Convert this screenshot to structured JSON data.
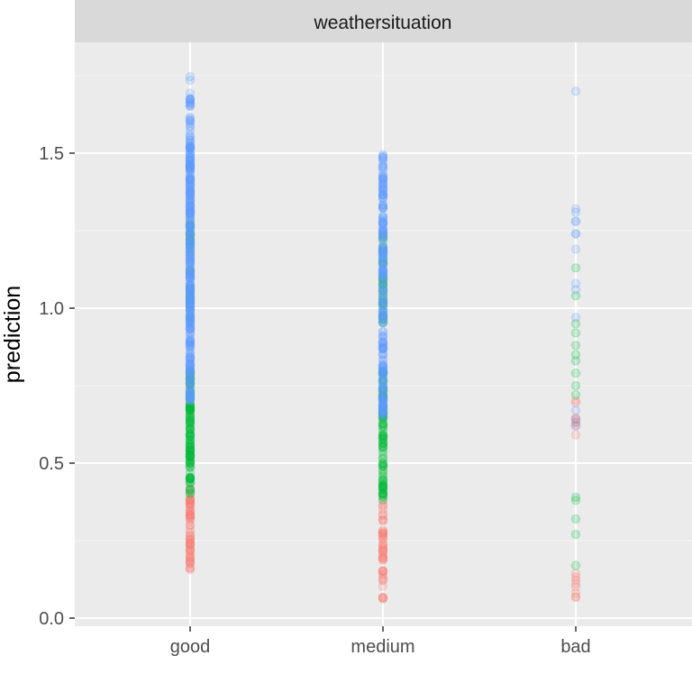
{
  "colors": {
    "panel_bg": "#EBEBEB",
    "strip_bg": "#D9D9D9",
    "grid_major": "#FFFFFF",
    "grid_minor": "#F5F5F5",
    "tick_mark": "#333333",
    "red_group": "#F8766D",
    "green_group": "#00BA38",
    "blue_group": "#619CFF"
  },
  "chart_data": {
    "type": "scatter",
    "strip_label": "weathersituation",
    "title": "",
    "xlabel": "",
    "ylabel": "prediction",
    "categories": [
      "good",
      "medium",
      "bad"
    ],
    "ylim": [
      -0.02,
      1.8
    ],
    "y_ticks": [
      0.0,
      0.5,
      1.0,
      1.5
    ],
    "y_tick_labels": [
      "0.0",
      "0.5",
      "1.0",
      "1.5"
    ],
    "grid": true,
    "point_alpha": 0.2,
    "series": [
      {
        "color": "#F8766D",
        "points": [
          {
            "x": "good",
            "range": [
              0.13,
              0.42
            ],
            "n": 55
          },
          {
            "x": "medium",
            "range": [
              0.06,
              0.38
            ],
            "n": 45
          },
          {
            "x": "bad",
            "range": [
              0.06,
              0.15
            ],
            "n": 8
          },
          {
            "x": "bad",
            "range": [
              0.59,
              0.72
            ],
            "n": 8
          }
        ]
      },
      {
        "color": "#00BA38",
        "points": [
          {
            "x": "good",
            "range": [
              0.4,
              0.8
            ],
            "n": 120
          },
          {
            "x": "good",
            "range": [
              0.95,
              1.3
            ],
            "n": 40
          },
          {
            "x": "medium",
            "range": [
              0.38,
              0.8
            ],
            "n": 100
          },
          {
            "x": "medium",
            "range": [
              0.95,
              1.25
            ],
            "n": 40
          },
          {
            "x": "bad",
            "values": [
              0.17,
              0.27,
              0.32,
              0.38,
              0.39,
              0.72,
              0.75,
              0.79,
              0.83,
              0.85,
              0.88,
              0.92,
              0.95,
              1.04,
              1.13
            ]
          }
        ]
      },
      {
        "color": "#619CFF",
        "points": [
          {
            "x": "good",
            "range": [
              0.7,
              1.55
            ],
            "n": 300
          },
          {
            "x": "good",
            "range": [
              1.55,
              1.76
            ],
            "n": 25
          },
          {
            "x": "medium",
            "range": [
              0.65,
              1.45
            ],
            "n": 200
          },
          {
            "x": "medium",
            "range": [
              1.45,
              1.52
            ],
            "n": 10
          },
          {
            "x": "bad",
            "values": [
              0.62,
              0.64,
              0.67,
              0.97,
              1.06,
              1.08,
              1.19,
              1.24,
              1.24,
              1.28,
              1.28,
              1.31,
              1.32,
              1.7
            ]
          }
        ]
      }
    ]
  }
}
